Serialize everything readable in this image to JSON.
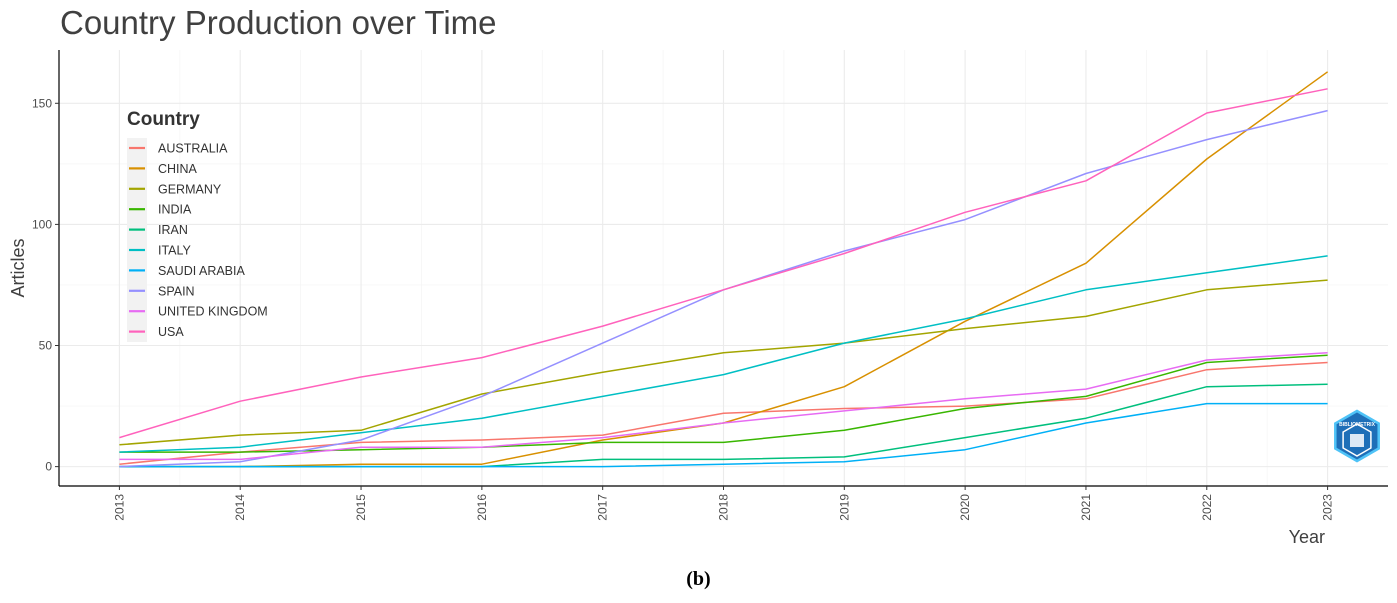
{
  "figure_caption": "(b)",
  "watermark": "BIBLIOMETRIX",
  "chart_data": {
    "type": "line",
    "title": "Country Production over Time",
    "xlabel": "Year",
    "ylabel": "Articles",
    "x": [
      2013,
      2014,
      2015,
      2016,
      2017,
      2018,
      2019,
      2020,
      2021,
      2022,
      2023
    ],
    "x_tick_labels": [
      "2013",
      "2014",
      "2015",
      "2016",
      "2017",
      "2018",
      "2019",
      "2020",
      "2021",
      "2022",
      "2023"
    ],
    "y_ticks": [
      0,
      50,
      100,
      150
    ],
    "y_tick_labels": [
      "0",
      "50",
      "100",
      "150"
    ],
    "xlim": [
      2012.5,
      2023.5
    ],
    "ylim": [
      -8,
      172
    ],
    "grid": true,
    "legend_title": "Country",
    "legend_position": "top-left",
    "series": [
      {
        "name": "AUSTRALIA",
        "color": "#F8766D",
        "values": [
          1,
          6,
          10,
          11,
          13,
          22,
          24,
          25,
          28,
          40,
          43
        ]
      },
      {
        "name": "CHINA",
        "color": "#D89000",
        "values": [
          0,
          0,
          1,
          1,
          11,
          18,
          33,
          60,
          84,
          127,
          163
        ]
      },
      {
        "name": "GERMANY",
        "color": "#A3A500",
        "values": [
          9,
          13,
          15,
          30,
          39,
          47,
          51,
          57,
          62,
          73,
          77
        ]
      },
      {
        "name": "INDIA",
        "color": "#39B600",
        "values": [
          6,
          6,
          7,
          8,
          10,
          10,
          15,
          24,
          29,
          43,
          46
        ]
      },
      {
        "name": "IRAN",
        "color": "#00BF7D",
        "values": [
          0,
          0,
          0,
          0,
          3,
          3,
          4,
          12,
          20,
          33,
          34
        ]
      },
      {
        "name": "ITALY",
        "color": "#00BFC4",
        "values": [
          6,
          8,
          14,
          20,
          29,
          38,
          51,
          61,
          73,
          80,
          87
        ]
      },
      {
        "name": "SAUDI ARABIA",
        "color": "#00B0F6",
        "values": [
          0,
          0,
          0,
          0,
          0,
          1,
          2,
          7,
          18,
          26,
          26
        ]
      },
      {
        "name": "SPAIN",
        "color": "#9590FF",
        "values": [
          0,
          2,
          11,
          29,
          51,
          73,
          89,
          102,
          121,
          135,
          147
        ]
      },
      {
        "name": "UNITED KINGDOM",
        "color": "#E76BF3",
        "values": [
          3,
          3,
          8,
          8,
          12,
          18,
          23,
          28,
          32,
          44,
          47
        ]
      },
      {
        "name": "USA",
        "color": "#FF62BC",
        "values": [
          12,
          27,
          37,
          45,
          58,
          73,
          88,
          105,
          118,
          146,
          156
        ]
      }
    ]
  }
}
